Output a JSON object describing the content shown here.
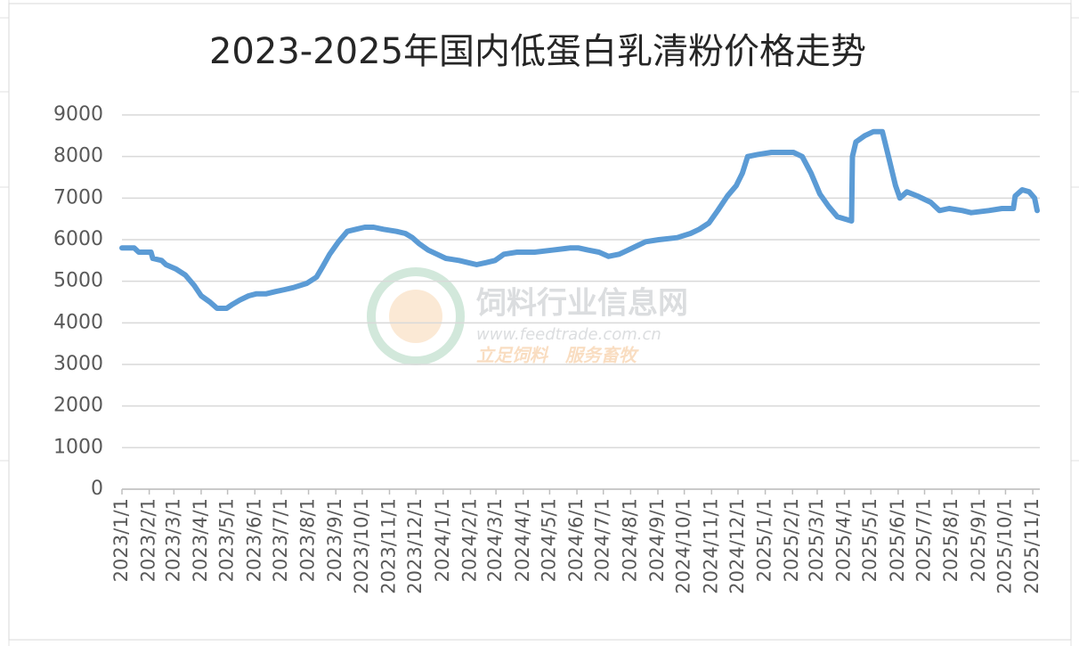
{
  "chart_data": {
    "type": "line",
    "title": "2023-2025年国内低蛋白乳清粉价格走势",
    "x": [
      "2023/1/1",
      "2023/1/15",
      "2023/1/20",
      "2023/2/3",
      "2023/2/5",
      "2023/2/15",
      "2023/2/20",
      "2023/3/3",
      "2023/3/14",
      "2023/3/24",
      "2023/4/1",
      "2023/4/11",
      "2023/4/19",
      "2023/4/30",
      "2023/5/7",
      "2023/5/15",
      "2023/5/25",
      "2023/6/3",
      "2023/6/14",
      "2023/6/24",
      "2023/7/5",
      "2023/7/15",
      "2023/7/30",
      "2023/8/10",
      "2023/8/17",
      "2023/8/25",
      "2023/9/4",
      "2023/9/14",
      "2023/9/24",
      "2023/10/4",
      "2023/10/14",
      "2023/10/25",
      "2023/11/9",
      "2023/11/19",
      "2023/11/27",
      "2023/12/5",
      "2023/12/15",
      "2023/12/25",
      "2024/1/4",
      "2024/1/19",
      "2024/1/29",
      "2024/2/8",
      "2024/2/19",
      "2024/2/29",
      "2024/3/10",
      "2024/3/25",
      "2024/4/14",
      "2024/5/4",
      "2024/5/24",
      "2024/6/3",
      "2024/6/14",
      "2024/6/26",
      "2024/7/7",
      "2024/7/19",
      "2024/7/29",
      "2024/8/8",
      "2024/8/18",
      "2024/9/2",
      "2024/9/23",
      "2024/10/8",
      "2024/10/18",
      "2024/10/29",
      "2024/11/8",
      "2024/11/19",
      "2024/11/29",
      "2024/12/6",
      "2024/12/12",
      "2024/12/24",
      "2025/1/8",
      "2025/2/2",
      "2025/2/12",
      "2025/2/22",
      "2025/3/4",
      "2025/3/14",
      "2025/3/24",
      "2025/4/9",
      "2025/4/10",
      "2025/4/14",
      "2025/4/24",
      "2025/5/4",
      "2025/5/14",
      "2025/5/21",
      "2025/5/29",
      "2025/6/3",
      "2025/6/11",
      "2025/6/23",
      "2025/7/8",
      "2025/7/18",
      "2025/7/29",
      "2025/8/13",
      "2025/8/23",
      "2025/9/12",
      "2025/9/27",
      "2025/10/10",
      "2025/10/12",
      "2025/10/20",
      "2025/10/28",
      "2025/11/3",
      "2025/11/6"
    ],
    "values": [
      5800,
      5800,
      5700,
      5700,
      5550,
      5500,
      5400,
      5300,
      5150,
      4900,
      4650,
      4500,
      4350,
      4350,
      4450,
      4550,
      4650,
      4700,
      4700,
      4750,
      4800,
      4850,
      4950,
      5100,
      5350,
      5650,
      5950,
      6200,
      6250,
      6300,
      6300,
      6250,
      6200,
      6150,
      6050,
      5900,
      5750,
      5650,
      5550,
      5500,
      5450,
      5400,
      5450,
      5500,
      5650,
      5700,
      5700,
      5750,
      5800,
      5800,
      5750,
      5700,
      5600,
      5650,
      5750,
      5850,
      5950,
      6000,
      6050,
      6150,
      6250,
      6400,
      6700,
      7050,
      7300,
      7600,
      8000,
      8050,
      8100,
      8100,
      8000,
      7600,
      7100,
      6800,
      6550,
      6450,
      8000,
      8350,
      8500,
      8600,
      8600,
      8000,
      7300,
      7000,
      7150,
      7050,
      6900,
      6700,
      6750,
      6700,
      6650,
      6700,
      6750,
      6750,
      7050,
      7200,
      7150,
      7000,
      6700
    ],
    "color": "#5b9bd5",
    "xlim": [
      "2023/1/1",
      "2025/11/9"
    ],
    "xticks": [
      "2023/1/1",
      "2023/2/1",
      "2023/3/1",
      "2023/4/1",
      "2023/5/1",
      "2023/6/1",
      "2023/7/1",
      "2023/8/1",
      "2023/9/1",
      "2023/10/1",
      "2023/11/1",
      "2023/12/1",
      "2024/1/1",
      "2024/2/1",
      "2024/3/1",
      "2024/4/1",
      "2024/5/1",
      "2024/6/1",
      "2024/7/1",
      "2024/8/1",
      "2024/9/1",
      "2024/10/1",
      "2024/11/1",
      "2024/12/1",
      "2025/1/1",
      "2025/2/1",
      "2025/3/1",
      "2025/4/1",
      "2025/5/1",
      "2025/6/1",
      "2025/7/1",
      "2025/8/1",
      "2025/9/1",
      "2025/10/1",
      "2025/11/1"
    ],
    "ylim": [
      0,
      9000
    ],
    "yticks": [
      0,
      1000,
      2000,
      3000,
      4000,
      5000,
      6000,
      7000,
      8000,
      9000
    ],
    "grid": true,
    "watermark": [
      "饲料行业信息网",
      "www.feedtrade.com.cn",
      "立足饲料　服务畜牧"
    ]
  }
}
